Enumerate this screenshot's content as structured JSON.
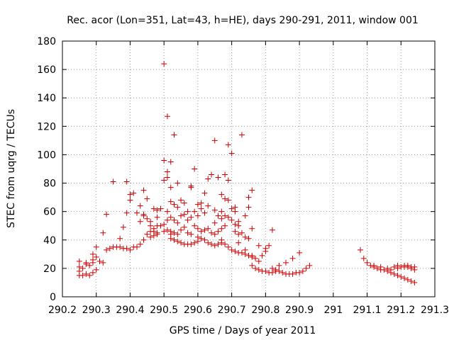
{
  "chart_data": {
    "type": "scatter",
    "title": "Rec. acor (Lon=351, Lat=43, h=HE), days 290-291, 2011, window 001",
    "xlabel": "GPS time / Days of year 2011",
    "ylabel": "STEC from uqrg / TECUs",
    "xlim": [
      290.2,
      291.3
    ],
    "ylim": [
      0,
      180
    ],
    "x_ticks": [
      290.2,
      290.3,
      290.4,
      290.5,
      290.6,
      290.7,
      290.8,
      290.9,
      291,
      291.1,
      291.2,
      291.3
    ],
    "x_tick_labels": [
      "290.2",
      "290.3",
      "290.4",
      "290.5",
      "290.6",
      "290.7",
      "290.8",
      "290.9",
      "291",
      "291.1",
      "291.2",
      "291.3"
    ],
    "y_ticks": [
      0,
      20,
      40,
      60,
      80,
      100,
      120,
      140,
      160,
      180
    ],
    "y_tick_labels": [
      "0",
      "20",
      "40",
      "60",
      "80",
      "100",
      "120",
      "140",
      "160",
      "180"
    ],
    "grid": true,
    "marker": "plus",
    "color": "#cc0000",
    "series": [
      {
        "points": [
          [
            290.25,
            15
          ],
          [
            290.26,
            15
          ],
          [
            290.27,
            16
          ],
          [
            290.28,
            15
          ],
          [
            290.29,
            17
          ],
          [
            290.3,
            19
          ],
          [
            290.32,
            24
          ],
          [
            290.25,
            18
          ],
          [
            290.26,
            20
          ],
          [
            290.28,
            22
          ],
          [
            290.29,
            24
          ],
          [
            290.31,
            25
          ],
          [
            290.25,
            21
          ],
          [
            290.27,
            23
          ],
          [
            290.29,
            26
          ],
          [
            290.3,
            28
          ],
          [
            290.25,
            25
          ],
          [
            290.27,
            24
          ],
          [
            290.29,
            30
          ],
          [
            290.3,
            35
          ],
          [
            290.32,
            45
          ],
          [
            290.33,
            58
          ],
          [
            290.33,
            33
          ],
          [
            290.34,
            34
          ],
          [
            290.35,
            35
          ],
          [
            290.36,
            35
          ],
          [
            290.37,
            35
          ],
          [
            290.38,
            34
          ],
          [
            290.39,
            34
          ],
          [
            290.4,
            33
          ],
          [
            290.41,
            35
          ],
          [
            290.42,
            35
          ],
          [
            290.43,
            37
          ],
          [
            290.44,
            40
          ],
          [
            290.45,
            44
          ],
          [
            290.46,
            46
          ],
          [
            290.47,
            48
          ],
          [
            290.48,
            50
          ],
          [
            290.35,
            81
          ],
          [
            290.39,
            81
          ],
          [
            290.37,
            41
          ],
          [
            290.38,
            49
          ],
          [
            290.39,
            59
          ],
          [
            290.4,
            68
          ],
          [
            290.41,
            73
          ],
          [
            290.42,
            59
          ],
          [
            290.43,
            64
          ],
          [
            290.44,
            75
          ],
          [
            290.45,
            69
          ],
          [
            290.46,
            53
          ],
          [
            290.47,
            62
          ],
          [
            290.48,
            61
          ],
          [
            290.4,
            72
          ],
          [
            290.43,
            53
          ],
          [
            290.44,
            58
          ],
          [
            290.45,
            55
          ],
          [
            290.46,
            50
          ],
          [
            290.47,
            46
          ],
          [
            290.48,
            45
          ],
          [
            290.49,
            50
          ],
          [
            290.44,
            57
          ],
          [
            290.46,
            42
          ],
          [
            290.47,
            43
          ],
          [
            290.48,
            44
          ],
          [
            290.5,
            46
          ],
          [
            290.51,
            47
          ],
          [
            290.52,
            44
          ],
          [
            290.48,
            56
          ],
          [
            290.49,
            62
          ],
          [
            290.5,
            51
          ],
          [
            290.51,
            54
          ],
          [
            290.52,
            46
          ],
          [
            290.53,
            45
          ],
          [
            290.54,
            44
          ],
          [
            290.5,
            164
          ],
          [
            290.51,
            127
          ],
          [
            290.52,
            95
          ],
          [
            290.53,
            114
          ],
          [
            290.54,
            80
          ],
          [
            290.5,
            96
          ],
          [
            290.5,
            82
          ],
          [
            290.51,
            84
          ],
          [
            290.51,
            88
          ],
          [
            290.52,
            77
          ],
          [
            290.52,
            67
          ],
          [
            290.53,
            65
          ],
          [
            290.54,
            63
          ],
          [
            290.55,
            68
          ],
          [
            290.56,
            66
          ],
          [
            290.51,
            60
          ],
          [
            290.52,
            56
          ],
          [
            290.53,
            54
          ],
          [
            290.54,
            52
          ],
          [
            290.55,
            57
          ],
          [
            290.56,
            58
          ],
          [
            290.57,
            60
          ],
          [
            290.52,
            41
          ],
          [
            290.53,
            40
          ],
          [
            290.54,
            39
          ],
          [
            290.55,
            38
          ],
          [
            290.56,
            37
          ],
          [
            290.57,
            37
          ],
          [
            290.58,
            37
          ],
          [
            290.59,
            38
          ],
          [
            290.6,
            39
          ],
          [
            290.55,
            47
          ],
          [
            290.56,
            49
          ],
          [
            290.57,
            45
          ],
          [
            290.58,
            44
          ],
          [
            290.59,
            50
          ],
          [
            290.6,
            48
          ],
          [
            290.61,
            46
          ],
          [
            290.57,
            54
          ],
          [
            290.58,
            56
          ],
          [
            290.59,
            60
          ],
          [
            290.6,
            57
          ],
          [
            290.61,
            62
          ],
          [
            290.62,
            59
          ],
          [
            290.58,
            77
          ],
          [
            290.58,
            78
          ],
          [
            290.59,
            90
          ],
          [
            290.6,
            65
          ],
          [
            290.61,
            66
          ],
          [
            290.62,
            73
          ],
          [
            290.63,
            64
          ],
          [
            290.6,
            42
          ],
          [
            290.61,
            41
          ],
          [
            290.62,
            40
          ],
          [
            290.63,
            38
          ],
          [
            290.64,
            37
          ],
          [
            290.65,
            36
          ],
          [
            290.66,
            37
          ],
          [
            290.67,
            38
          ],
          [
            290.62,
            47
          ],
          [
            290.63,
            48
          ],
          [
            290.64,
            45
          ],
          [
            290.65,
            44
          ],
          [
            290.66,
            46
          ],
          [
            290.67,
            48
          ],
          [
            290.68,
            50
          ],
          [
            290.63,
            83
          ],
          [
            290.64,
            86
          ],
          [
            290.65,
            110
          ],
          [
            290.66,
            84
          ],
          [
            290.67,
            72
          ],
          [
            290.68,
            86
          ],
          [
            290.69,
            107
          ],
          [
            290.7,
            101
          ],
          [
            290.65,
            61
          ],
          [
            290.66,
            57
          ],
          [
            290.67,
            60
          ],
          [
            290.68,
            69
          ],
          [
            290.69,
            68
          ],
          [
            290.7,
            62
          ],
          [
            290.71,
            63
          ],
          [
            290.65,
            52
          ],
          [
            290.67,
            55
          ],
          [
            290.68,
            57
          ],
          [
            290.69,
            56
          ],
          [
            290.7,
            54
          ],
          [
            290.71,
            51
          ],
          [
            290.72,
            50
          ],
          [
            290.67,
            40
          ],
          [
            290.68,
            37
          ],
          [
            290.69,
            35
          ],
          [
            290.7,
            33
          ],
          [
            290.71,
            32
          ],
          [
            290.72,
            31
          ],
          [
            290.73,
            31
          ],
          [
            290.74,
            30
          ],
          [
            290.75,
            29
          ],
          [
            290.76,
            29
          ],
          [
            290.69,
            82
          ],
          [
            290.71,
            60
          ],
          [
            290.72,
            53
          ],
          [
            290.73,
            114
          ],
          [
            290.74,
            57
          ],
          [
            290.75,
            63
          ],
          [
            290.75,
            70
          ],
          [
            290.76,
            75
          ],
          [
            290.71,
            46
          ],
          [
            290.72,
            44
          ],
          [
            290.73,
            45
          ],
          [
            290.74,
            42
          ],
          [
            290.75,
            41
          ],
          [
            290.76,
            48
          ],
          [
            290.72,
            38
          ],
          [
            290.74,
            33
          ],
          [
            290.76,
            28
          ],
          [
            290.77,
            27
          ],
          [
            290.78,
            25
          ],
          [
            290.79,
            29
          ],
          [
            290.8,
            32
          ],
          [
            290.81,
            36
          ],
          [
            290.82,
            47
          ],
          [
            290.76,
            22
          ],
          [
            290.77,
            20
          ],
          [
            290.78,
            19
          ],
          [
            290.79,
            18
          ],
          [
            290.8,
            18
          ],
          [
            290.81,
            17
          ],
          [
            290.82,
            17
          ],
          [
            290.83,
            18
          ],
          [
            290.83,
            19
          ],
          [
            290.84,
            18
          ],
          [
            290.85,
            17
          ],
          [
            290.86,
            16
          ],
          [
            290.87,
            16
          ],
          [
            290.88,
            16
          ],
          [
            290.89,
            17
          ],
          [
            290.9,
            17
          ],
          [
            290.91,
            18
          ],
          [
            290.92,
            20
          ],
          [
            290.93,
            22
          ],
          [
            290.78,
            36
          ],
          [
            290.8,
            34
          ],
          [
            290.82,
            20
          ],
          [
            290.84,
            22
          ],
          [
            290.86,
            24
          ],
          [
            290.88,
            27
          ],
          [
            290.9,
            31
          ],
          [
            291.08,
            33
          ],
          [
            291.09,
            27
          ],
          [
            291.1,
            24
          ],
          [
            291.11,
            22
          ],
          [
            291.12,
            21
          ],
          [
            291.13,
            20
          ],
          [
            291.14,
            19
          ],
          [
            291.15,
            19
          ],
          [
            291.16,
            18
          ],
          [
            291.17,
            17
          ],
          [
            291.18,
            16
          ],
          [
            291.19,
            15
          ],
          [
            291.2,
            14
          ],
          [
            291.21,
            13
          ],
          [
            291.22,
            12
          ],
          [
            291.23,
            11
          ],
          [
            291.24,
            10
          ],
          [
            291.12,
            22
          ],
          [
            291.14,
            21
          ],
          [
            291.16,
            20
          ],
          [
            291.18,
            21
          ],
          [
            291.19,
            22
          ],
          [
            291.2,
            21
          ],
          [
            291.21,
            21
          ],
          [
            291.22,
            21
          ],
          [
            291.23,
            20
          ],
          [
            291.24,
            21
          ],
          [
            291.17,
            19
          ],
          [
            291.19,
            20
          ],
          [
            291.21,
            22
          ],
          [
            291.22,
            22
          ],
          [
            291.23,
            21
          ],
          [
            291.24,
            19
          ]
        ]
      }
    ]
  }
}
